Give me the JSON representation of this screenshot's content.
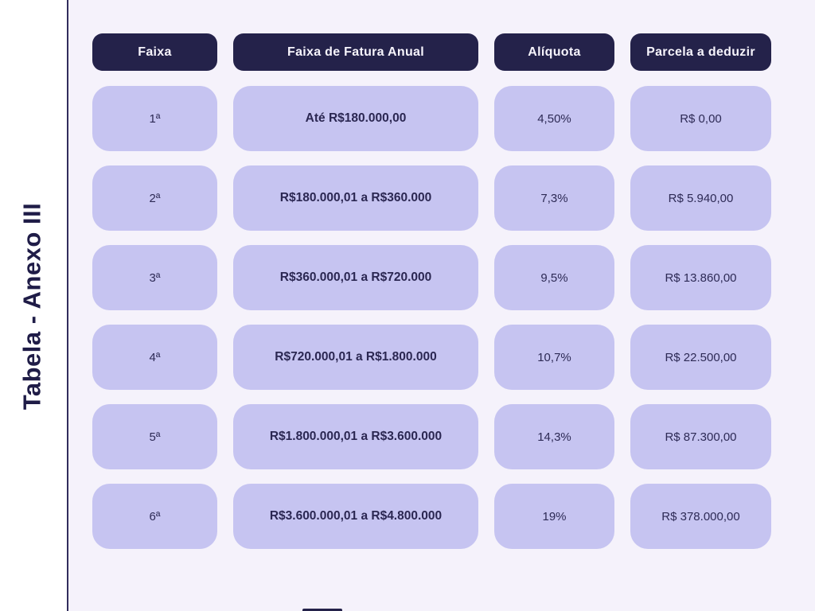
{
  "page": {
    "title": "Tabela - Anexo III",
    "colors": {
      "background": "#f5f2fb",
      "sidebar_background": "#ffffff",
      "divider": "#312d5c",
      "header_pill": "#24224a",
      "header_text": "#f6f4fc",
      "cell_pill": "#c6c4f1",
      "cell_text": "#2d2a55",
      "title_text": "#1f1c47"
    }
  },
  "chart_data": {
    "type": "table",
    "title": "Tabela - Anexo III",
    "columns": [
      "Faixa",
      "Faixa de Fatura Anual",
      "Alíquota",
      "Parcela a deduzir"
    ],
    "rows": [
      [
        "1ª",
        "Até R$180.000,00",
        "4,50%",
        "R$ 0,00"
      ],
      [
        "2ª",
        "R$180.000,01 a R$360.000",
        "7,3%",
        "R$ 5.940,00"
      ],
      [
        "3ª",
        "R$360.000,01 a R$720.000",
        "9,5%",
        "R$ 13.860,00"
      ],
      [
        "4ª",
        "R$720.000,01 a R$1.800.000",
        "10,7%",
        "R$ 22.500,00"
      ],
      [
        "5ª",
        "R$1.800.000,01 a R$3.600.000",
        "14,3%",
        "R$ 87.300,00"
      ],
      [
        "6ª",
        "R$3.600.000,01 a R$4.800.000",
        "19%",
        "R$ 378.000,00"
      ]
    ]
  }
}
